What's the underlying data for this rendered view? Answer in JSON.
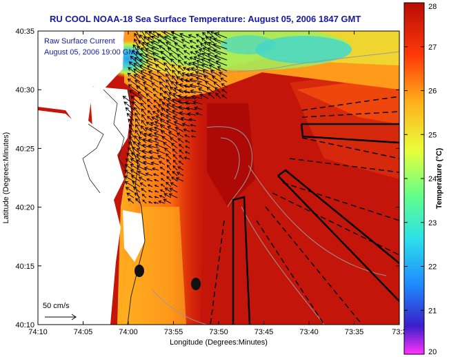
{
  "title": "RU COOL  NOAA-18  Sea Surface Temperature:  August 05, 2006 1847 GMT",
  "legend_lines": [
    "Raw Surface Current",
    "August 05, 2006 19:00 GMT"
  ],
  "scale_label": "50 cm/s",
  "x_axis_label": "Longitude (Degrees:Minutes)",
  "y_axis_label": "Latitude (Degrees:Minutes)",
  "x_ticks": [
    "74:10",
    "74:05",
    "74:00",
    "73:55",
    "73:50",
    "73:45",
    "73:40",
    "73:35",
    "73:3"
  ],
  "y_ticks": [
    "40:35",
    "40:30",
    "40:25",
    "40:20",
    "40:15",
    "40:10"
  ],
  "colorbar": {
    "label": "Temperature (°C)",
    "ticks": [
      "28",
      "27",
      "26",
      "25",
      "24",
      "23",
      "22",
      "21",
      "20"
    ],
    "stops": [
      "#ff33ff",
      "#3a1fc8",
      "#1e8cff",
      "#2ee0e8",
      "#62ff8a",
      "#e8ff3a",
      "#ffae1a",
      "#ff3a0a",
      "#b80c06"
    ]
  },
  "colors": {
    "title": "#1818a8",
    "land": "#ffffff",
    "warm_sea": "#c4150a",
    "cool_sea": "#3ec0e8"
  }
}
